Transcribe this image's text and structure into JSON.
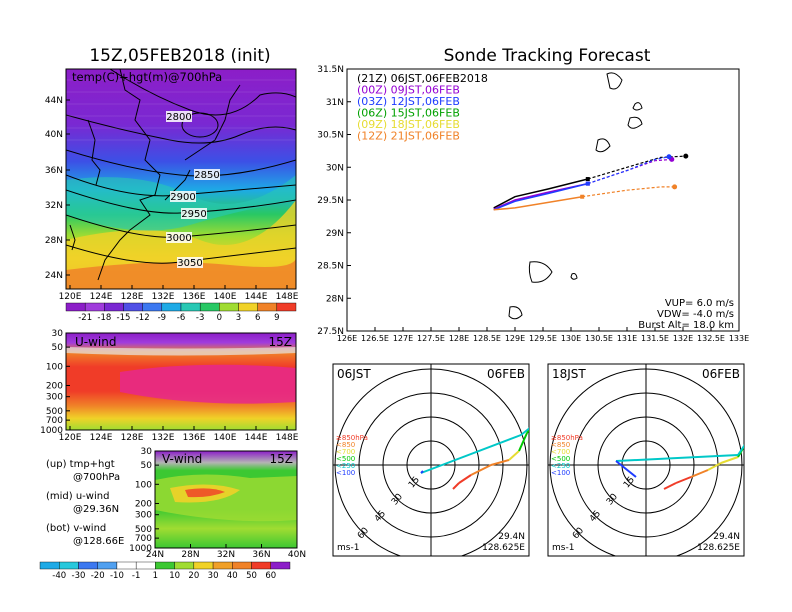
{
  "left_panel": {
    "title": "15Z,05FEB2018 (init)",
    "map_label": "temp(C)+hgt(m)@700hPa",
    "lat_ticks": [
      "44N",
      "40N",
      "36N",
      "32N",
      "28N",
      "24N"
    ],
    "lon_ticks": [
      "120E",
      "124E",
      "128E",
      "132E",
      "136E",
      "140E",
      "144E",
      "148E"
    ],
    "contours": [
      "2800",
      "2850",
      "2900",
      "2950",
      "3000",
      "3050"
    ],
    "colorbar_ticks": [
      "-21",
      "-18",
      "-15",
      "-12",
      "-9",
      "-6",
      "-3",
      "0",
      "3",
      "6",
      "9"
    ]
  },
  "uwind_panel": {
    "label": "U-wind",
    "time": "15Z",
    "p_ticks": [
      "30",
      "50",
      "100",
      "200",
      "300",
      "500",
      "700",
      "1000"
    ],
    "lon_ticks": [
      "120E",
      "124E",
      "128E",
      "132E",
      "136E",
      "140E",
      "144E",
      "148E"
    ]
  },
  "vwind_panel": {
    "label": "V-wind",
    "time": "15Z",
    "p_ticks": [
      "30",
      "50",
      "100",
      "200",
      "300",
      "500",
      "700",
      "1000"
    ],
    "lat_ticks": [
      "24N",
      "28N",
      "32N",
      "36N",
      "40N"
    ],
    "colorbar_ticks": [
      "-40",
      "-30",
      "-20",
      "-10",
      "-1",
      "1",
      "10",
      "20",
      "30",
      "40",
      "50",
      "60"
    ]
  },
  "legend_notes": {
    "up": "(up) tmp+hgt",
    "up2": "@700hPa",
    "mid": "(mid) u-wind",
    "mid2": "@29.36N",
    "bot": "(bot) v-wind",
    "bot2": "@128.66E"
  },
  "track_panel": {
    "title": "Sonde Tracking Forecast",
    "legend": [
      {
        "text": "(21Z) 06JST,06FEB2018",
        "color": "#000000"
      },
      {
        "text": "(00Z) 09JST,06FEB",
        "color": "#9400d3"
      },
      {
        "text": "(03Z) 12JST,06FEB",
        "color": "#1e3cff"
      },
      {
        "text": "(06Z) 15JST,06FEB",
        "color": "#00a000"
      },
      {
        "text": "(09Z) 18JST,06FEB",
        "color": "#e6dc32"
      },
      {
        "text": "(12Z) 21JST,06FEB",
        "color": "#f08228"
      }
    ],
    "lat_ticks": [
      "31.5N",
      "31N",
      "30.5N",
      "30N",
      "29.5N",
      "29N",
      "28.5N",
      "28N",
      "27.5N"
    ],
    "lon_ticks": [
      "126E",
      "126.5E",
      "127E",
      "127.5E",
      "128E",
      "128.5E",
      "129E",
      "129.5E",
      "130E",
      "130.5E",
      "131E",
      "131.5E",
      "132E",
      "132.5E",
      "133E"
    ],
    "info": [
      "VUP= 6.0 m/s",
      "VDW= -4.0 m/s",
      "Burst Alt= 18.0 km"
    ]
  },
  "hodograph_1": {
    "time": "06JST",
    "date": "06FEB",
    "speed_labels": [
      "15",
      "30",
      "45",
      "60"
    ],
    "levels": [
      {
        "text": "≥850hPa",
        "color": "#f03c28"
      },
      {
        "text": "<850",
        "color": "#f08228"
      },
      {
        "text": "<700",
        "color": "#e6dc32"
      },
      {
        "text": "<500",
        "color": "#00c800"
      },
      {
        "text": "<250",
        "color": "#00c8c8"
      },
      {
        "text": "<100",
        "color": "#1e3cff"
      }
    ],
    "unit": "ms-1",
    "lat": "29.4N",
    "lon": "128.625E"
  },
  "hodograph_2": {
    "time": "18JST",
    "date": "06FEB",
    "speed_labels": [
      "15",
      "30",
      "45",
      "60"
    ],
    "levels": [
      {
        "text": "≥850hPa",
        "color": "#f03c28"
      },
      {
        "text": "<850",
        "color": "#f08228"
      },
      {
        "text": "<700",
        "color": "#e6dc32"
      },
      {
        "text": "<500",
        "color": "#00c800"
      },
      {
        "text": "<250",
        "color": "#00c8c8"
      },
      {
        "text": "<100",
        "color": "#1e3cff"
      }
    ],
    "unit": "ms-1",
    "lat": "29.4N",
    "lon": "128.625E"
  },
  "chart_data": [
    {
      "type": "heatmap",
      "title": "15Z,05FEB2018 (init)",
      "subtitle": "temp(C)+hgt(m)@700hPa",
      "xlim": [
        "120E",
        "150E"
      ],
      "ylim": [
        "22N",
        "46N"
      ],
      "contour_levels_m": [
        2800,
        2850,
        2900,
        2950,
        3000,
        3050
      ],
      "color_levels_C": [
        -21,
        -18,
        -15,
        -12,
        -9,
        -6,
        -3,
        0,
        3,
        6,
        9
      ]
    },
    {
      "type": "heatmap",
      "title": "U-wind",
      "xlim": [
        "120E",
        "150E"
      ],
      "ylim_hPa": [
        1000,
        30
      ],
      "time": "15Z"
    },
    {
      "type": "heatmap",
      "title": "V-wind",
      "xlim": [
        "24N",
        "40N"
      ],
      "ylim_hPa": [
        1000,
        30
      ],
      "time": "15Z",
      "color_levels": [
        -40,
        -30,
        -20,
        -10,
        -1,
        1,
        10,
        20,
        30,
        40,
        50,
        60
      ]
    },
    {
      "type": "line",
      "title": "Sonde Tracking Forecast",
      "xlim": [
        126,
        133
      ],
      "ylim": [
        27.5,
        31.5
      ],
      "series": [
        {
          "name": "(21Z) 06JST,06FEB2018",
          "color": "#000000",
          "x": [
            128.62,
            129.0,
            129.6,
            130.3,
            131.0,
            131.6,
            132.05
          ],
          "y": [
            29.38,
            29.55,
            29.67,
            29.82,
            30.0,
            30.15,
            30.17
          ]
        },
        {
          "name": "(00Z) 09JST,06FEB",
          "color": "#9400d3",
          "x": [
            128.62,
            129.0,
            129.6,
            130.3,
            131.0,
            131.5,
            131.8
          ],
          "y": [
            29.36,
            29.5,
            29.62,
            29.75,
            29.95,
            30.1,
            30.12
          ]
        },
        {
          "name": "(03Z) 12JST,06FEB",
          "color": "#1e3cff",
          "x": [
            128.62,
            129.0,
            129.6,
            130.3,
            131.0,
            131.5,
            131.75
          ],
          "y": [
            29.35,
            29.48,
            29.6,
            29.75,
            29.95,
            30.12,
            30.16
          ]
        },
        {
          "name": "(12Z) 21JST,06FEB",
          "color": "#f08228",
          "x": [
            128.62,
            129.0,
            129.5,
            130.2,
            131.0,
            131.6,
            131.85
          ],
          "y": [
            29.35,
            29.38,
            29.45,
            29.55,
            29.65,
            29.7,
            29.7
          ]
        }
      ]
    }
  ]
}
